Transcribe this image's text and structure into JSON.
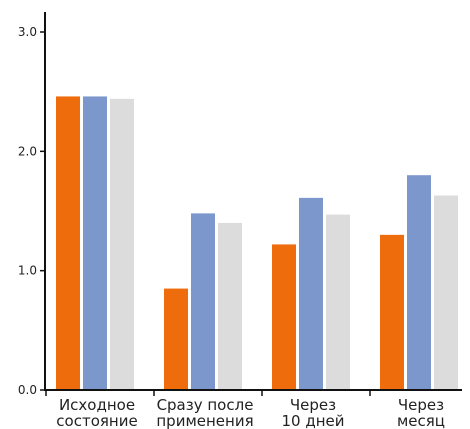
{
  "chart_data": {
    "type": "bar",
    "title": "",
    "xlabel": "",
    "ylabel": "",
    "ylim": [
      0,
      3.0
    ],
    "grid": false,
    "legend": "none",
    "y_ticks": [
      "0.0",
      "1.0",
      "2.0",
      "3.0"
    ],
    "categories": [
      [
        "Исходное",
        "состояние"
      ],
      [
        "Сразу после",
        "применения"
      ],
      [
        "Через",
        "10 дней"
      ],
      [
        "Через",
        "месяц"
      ]
    ],
    "series": [
      {
        "color": "#ee6c0c",
        "values": [
          2.46,
          0.85,
          1.22,
          1.3
        ]
      },
      {
        "color": "#7b97cc",
        "values": [
          2.46,
          1.48,
          1.61,
          1.8
        ]
      },
      {
        "color": "#dcdcdc",
        "values": [
          2.44,
          1.4,
          1.47,
          1.63
        ]
      }
    ]
  }
}
